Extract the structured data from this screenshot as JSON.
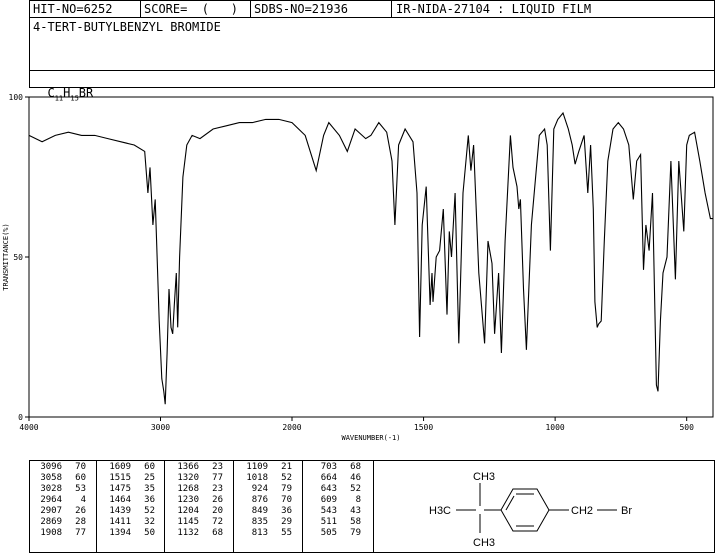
{
  "header": {
    "hit_no": "HIT-NO=6252",
    "score": "SCORE=  (   )",
    "sdbs_no": "SDBS-NO=21936",
    "ir_nida": "IR-NIDA-27104 : LIQUID FILM",
    "compound_name": "4-TERT-BUTYLBENZYL BROMIDE",
    "formula_c": "C",
    "formula_c_n": "11",
    "formula_h": "H",
    "formula_h_n": "15",
    "formula_br": "BR"
  },
  "chart_data": {
    "type": "line",
    "xlabel": "WAVENUMBER(-1)",
    "ylabel": "TRANSMITTANCE(%)",
    "xlim": [
      4000,
      400
    ],
    "ylim": [
      0,
      100
    ],
    "x_ticks": [
      4000,
      3000,
      2000,
      1500,
      1000,
      500
    ],
    "y_ticks": [
      0,
      50,
      100
    ],
    "x_tick_labels": [
      "4000",
      "3000",
      "2000",
      "1500",
      "1000",
      "500"
    ],
    "y_tick_labels": [
      "0",
      "50",
      "100"
    ],
    "series": [
      {
        "x": [
          4000,
          3900,
          3800,
          3700,
          3600,
          3500,
          3400,
          3300,
          3200,
          3120,
          3096,
          3080,
          3058,
          3040,
          3028,
          3010,
          2990,
          2975,
          2964,
          2950,
          2935,
          2920,
          2907,
          2895,
          2880,
          2869,
          2855,
          2830,
          2800,
          2760,
          2700,
          2600,
          2500,
          2400,
          2300,
          2200,
          2100,
          2000,
          1950,
          1908,
          1880,
          1860,
          1820,
          1790,
          1760,
          1720,
          1700,
          1670,
          1640,
          1620,
          1609,
          1595,
          1570,
          1540,
          1525,
          1515,
          1505,
          1490,
          1475,
          1468,
          1464,
          1452,
          1439,
          1425,
          1411,
          1402,
          1394,
          1380,
          1366,
          1350,
          1330,
          1320,
          1310,
          1290,
          1268,
          1255,
          1240,
          1230,
          1215,
          1204,
          1190,
          1170,
          1160,
          1145,
          1138,
          1132,
          1120,
          1109,
          1090,
          1060,
          1040,
          1030,
          1018,
          1005,
          990,
          970,
          950,
          935,
          924,
          910,
          890,
          876,
          865,
          855,
          849,
          840,
          835,
          825,
          813,
          800,
          780,
          760,
          740,
          720,
          703,
          690,
          675,
          664,
          655,
          643,
          630,
          615,
          609,
          600,
          590,
          575,
          560,
          543,
          530,
          511,
          500,
          490,
          470,
          450,
          430,
          410,
          400
        ],
        "y": [
          88,
          86,
          88,
          89,
          88,
          88,
          87,
          86,
          85,
          83,
          70,
          78,
          60,
          68,
          53,
          30,
          12,
          8,
          4,
          20,
          40,
          28,
          26,
          35,
          45,
          28,
          50,
          75,
          85,
          88,
          87,
          90,
          91,
          92,
          92,
          93,
          93,
          92,
          88,
          77,
          88,
          92,
          88,
          83,
          90,
          87,
          88,
          92,
          89,
          80,
          60,
          85,
          90,
          86,
          70,
          25,
          60,
          72,
          35,
          45,
          36,
          50,
          52,
          65,
          32,
          58,
          50,
          70,
          23,
          70,
          88,
          77,
          85,
          45,
          23,
          55,
          48,
          26,
          45,
          20,
          55,
          88,
          78,
          72,
          65,
          68,
          40,
          21,
          60,
          88,
          90,
          85,
          52,
          90,
          93,
          95,
          90,
          85,
          79,
          83,
          88,
          70,
          85,
          65,
          36,
          28,
          29,
          30,
          55,
          80,
          90,
          92,
          90,
          85,
          68,
          80,
          82,
          46,
          60,
          52,
          70,
          10,
          8,
          30,
          45,
          50,
          80,
          43,
          80,
          58,
          85,
          88,
          89,
          80,
          70,
          62,
          62
        ]
      }
    ]
  },
  "peak_table": [
    [
      [
        "3096",
        "70"
      ],
      [
        "3058",
        "60"
      ],
      [
        "3028",
        "53"
      ],
      [
        "2964",
        "4"
      ],
      [
        "2907",
        "26"
      ],
      [
        "2869",
        "28"
      ],
      [
        "1908",
        "77"
      ]
    ],
    [
      [
        "1609",
        "60"
      ],
      [
        "1515",
        "25"
      ],
      [
        "1475",
        "35"
      ],
      [
        "1464",
        "36"
      ],
      [
        "1439",
        "52"
      ],
      [
        "1411",
        "32"
      ],
      [
        "1394",
        "50"
      ]
    ],
    [
      [
        "1366",
        "23"
      ],
      [
        "1320",
        "77"
      ],
      [
        "1268",
        "23"
      ],
      [
        "1230",
        "26"
      ],
      [
        "1204",
        "20"
      ],
      [
        "1145",
        "72"
      ],
      [
        "1132",
        "68"
      ]
    ],
    [
      [
        "1109",
        "21"
      ],
      [
        "1018",
        "52"
      ],
      [
        "924",
        "79"
      ],
      [
        "876",
        "70"
      ],
      [
        "849",
        "36"
      ],
      [
        "835",
        "29"
      ],
      [
        "813",
        "55"
      ]
    ],
    [
      [
        "703",
        "68"
      ],
      [
        "664",
        "46"
      ],
      [
        "643",
        "52"
      ],
      [
        "609",
        "8"
      ],
      [
        "543",
        "43"
      ],
      [
        "511",
        "58"
      ],
      [
        "505",
        "79"
      ]
    ]
  ],
  "structure": {
    "top_label": "CH3",
    "left_label": "H3C",
    "bottom_label": "CH3",
    "right_label": "CH2",
    "br_label": "Br"
  }
}
